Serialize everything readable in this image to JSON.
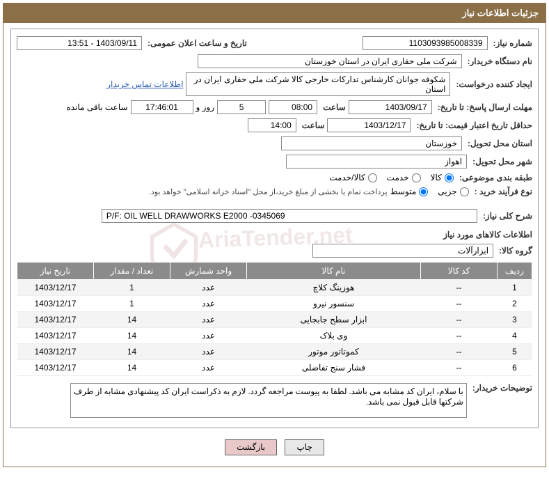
{
  "header": {
    "title": "جزئیات اطلاعات نیاز"
  },
  "fields": {
    "need_no_label": "شماره نیاز:",
    "need_no": "1103093985008339",
    "announce_label": "تاریخ و ساعت اعلان عمومی:",
    "announce": "1403/09/11 - 13:51",
    "buyer_org_label": "نام دستگاه خریدار:",
    "buyer_org": "شرکت ملی حفاری ایران در استان خوزستان",
    "requester_label": "ایجاد کننده درخواست:",
    "requester": "شکوفه جوانان کارشناس تدارکات خارجی کالا شرکت ملی حفاری ایران در استان",
    "contact_link": "اطلاعات تماس خریدار",
    "deadline_label": "مهلت ارسال پاسخ: تا تاریخ:",
    "deadline_date": "1403/09/17",
    "time_label": "ساعت",
    "deadline_time": "08:00",
    "days": "5",
    "days_and": "روز و",
    "remaining_time": "17:46:01",
    "remaining_label": "ساعت باقی مانده",
    "validity_label": "حداقل تاریخ اعتبار قیمت: تا تاریخ:",
    "validity_date": "1403/12/17",
    "validity_time": "14:00",
    "province_label": "استان محل تحویل:",
    "province": "خوزستان",
    "city_label": "شهر محل تحویل:",
    "city": "اهواز",
    "category_label": "طبقه بندی موضوعی:",
    "cat_kala": "کالا",
    "cat_khadamat": "خدمت",
    "cat_both": "کالا/خدمت",
    "process_label": "نوع فرآیند خرید :",
    "proc_small": "جزیی",
    "proc_medium": "متوسط",
    "payment_note": "پرداخت تمام یا بخشی از مبلغ خرید،از محل \"اسناد خزانه اسلامی\" خواهد بود.",
    "overview_label": "شرح کلی نیاز:",
    "overview": "P/F: OIL WELL DRAWWORKS E2000 -0345069",
    "items_section": "اطلاعات کالاهای مورد نیاز",
    "group_label": "گروه کالا:",
    "group": "ابزارآلات",
    "buyer_notes_label": "توضیحات خریدار:",
    "buyer_notes": "با سلام، ایران کد مشابه می باشد. لطفا به پیوست مراجعه گردد. لازم به ذکراست ایران کد پیشنهادی مشابه از طرف شرکتها قابل قبول نمی باشد."
  },
  "table": {
    "headers": {
      "row": "ردیف",
      "code": "کد کالا",
      "name": "نام کالا",
      "unit": "واحد شمارش",
      "qty": "تعداد / مقدار",
      "date": "تاریخ نیاز"
    },
    "rows": [
      {
        "n": "1",
        "code": "--",
        "name": "هوزینگ کلاچ",
        "unit": "عدد",
        "qty": "1",
        "date": "1403/12/17"
      },
      {
        "n": "2",
        "code": "--",
        "name": "سنسور نیرو",
        "unit": "عدد",
        "qty": "1",
        "date": "1403/12/17"
      },
      {
        "n": "3",
        "code": "--",
        "name": "ابزار سطح جابجایی",
        "unit": "عدد",
        "qty": "14",
        "date": "1403/12/17"
      },
      {
        "n": "4",
        "code": "--",
        "name": "وی بلاک",
        "unit": "عدد",
        "qty": "14",
        "date": "1403/12/17"
      },
      {
        "n": "5",
        "code": "--",
        "name": "کموتاتور موتور",
        "unit": "عدد",
        "qty": "14",
        "date": "1403/12/17"
      },
      {
        "n": "6",
        "code": "--",
        "name": "فشار سنج تفاضلی",
        "unit": "عدد",
        "qty": "14",
        "date": "1403/12/17"
      }
    ]
  },
  "buttons": {
    "print": "چاپ",
    "back": "بازگشت"
  },
  "colors": {
    "header_bg": "#8b6f47",
    "table_th_bg": "#8b8b8b",
    "link": "#2a5db0"
  }
}
